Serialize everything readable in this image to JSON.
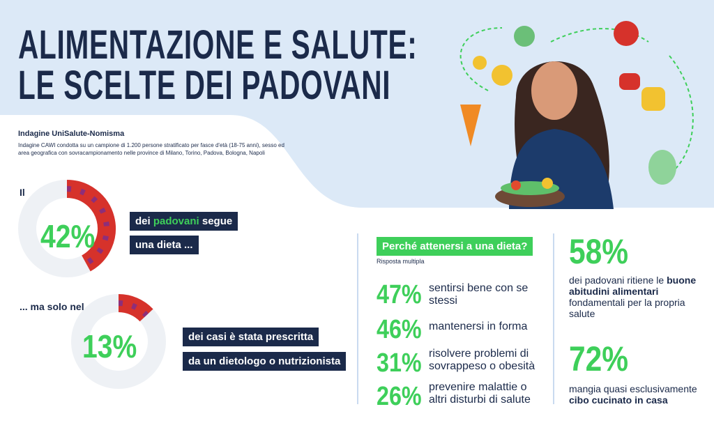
{
  "header": {
    "title_line1": "ALIMENTAZIONE E SALUTE:",
    "title_line2": "LE SCELTE DEI PADOVANI"
  },
  "survey": {
    "title": "Indagine UniSalute-Nomisma",
    "description": "Indagine CAWI condotta su un campione di 1.200 persone stratificato per fasce d'età (18-75 anni), sesso ed area geografica con sovracampionamento nelle province di Milano, Torino, Padova, Bologna, Napoli"
  },
  "diet": {
    "intro": "Il",
    "value": 42,
    "label": "42%",
    "line1_prefix": "dei ",
    "line1_highlight": "padovani",
    "line1_suffix": " segue",
    "line2": "una dieta ..."
  },
  "prescribed": {
    "intro": "... ma solo nel",
    "value": 13,
    "label": "13%",
    "line1": "dei casi è stata prescritta",
    "line2": "da un dietologo o nutrizionista"
  },
  "reasons": {
    "title": "Perché attenersi a una dieta?",
    "note": "Risposta multipla",
    "items": [
      {
        "value": 47,
        "label": "47%",
        "text": "sentirsi bene con se stessi"
      },
      {
        "value": 46,
        "label": "46%",
        "text": "mantenersi in forma"
      },
      {
        "value": 31,
        "label": "31%",
        "text": "risolvere problemi di sovrappeso o obesità"
      },
      {
        "value": 26,
        "label": "26%",
        "text": "prevenire malattie o altri disturbi di salute"
      }
    ]
  },
  "habits": {
    "value": 58,
    "label": "58%",
    "text_prefix": "dei padovani ritiene le ",
    "text_bold": "buone abitudini alimentari",
    "text_suffix": " fondamentali per la propria salute"
  },
  "home": {
    "value": 72,
    "label": "72%",
    "text_prefix": "mangia quasi esclusivamente ",
    "text_bold": "cibo cucinato in casa"
  }
}
